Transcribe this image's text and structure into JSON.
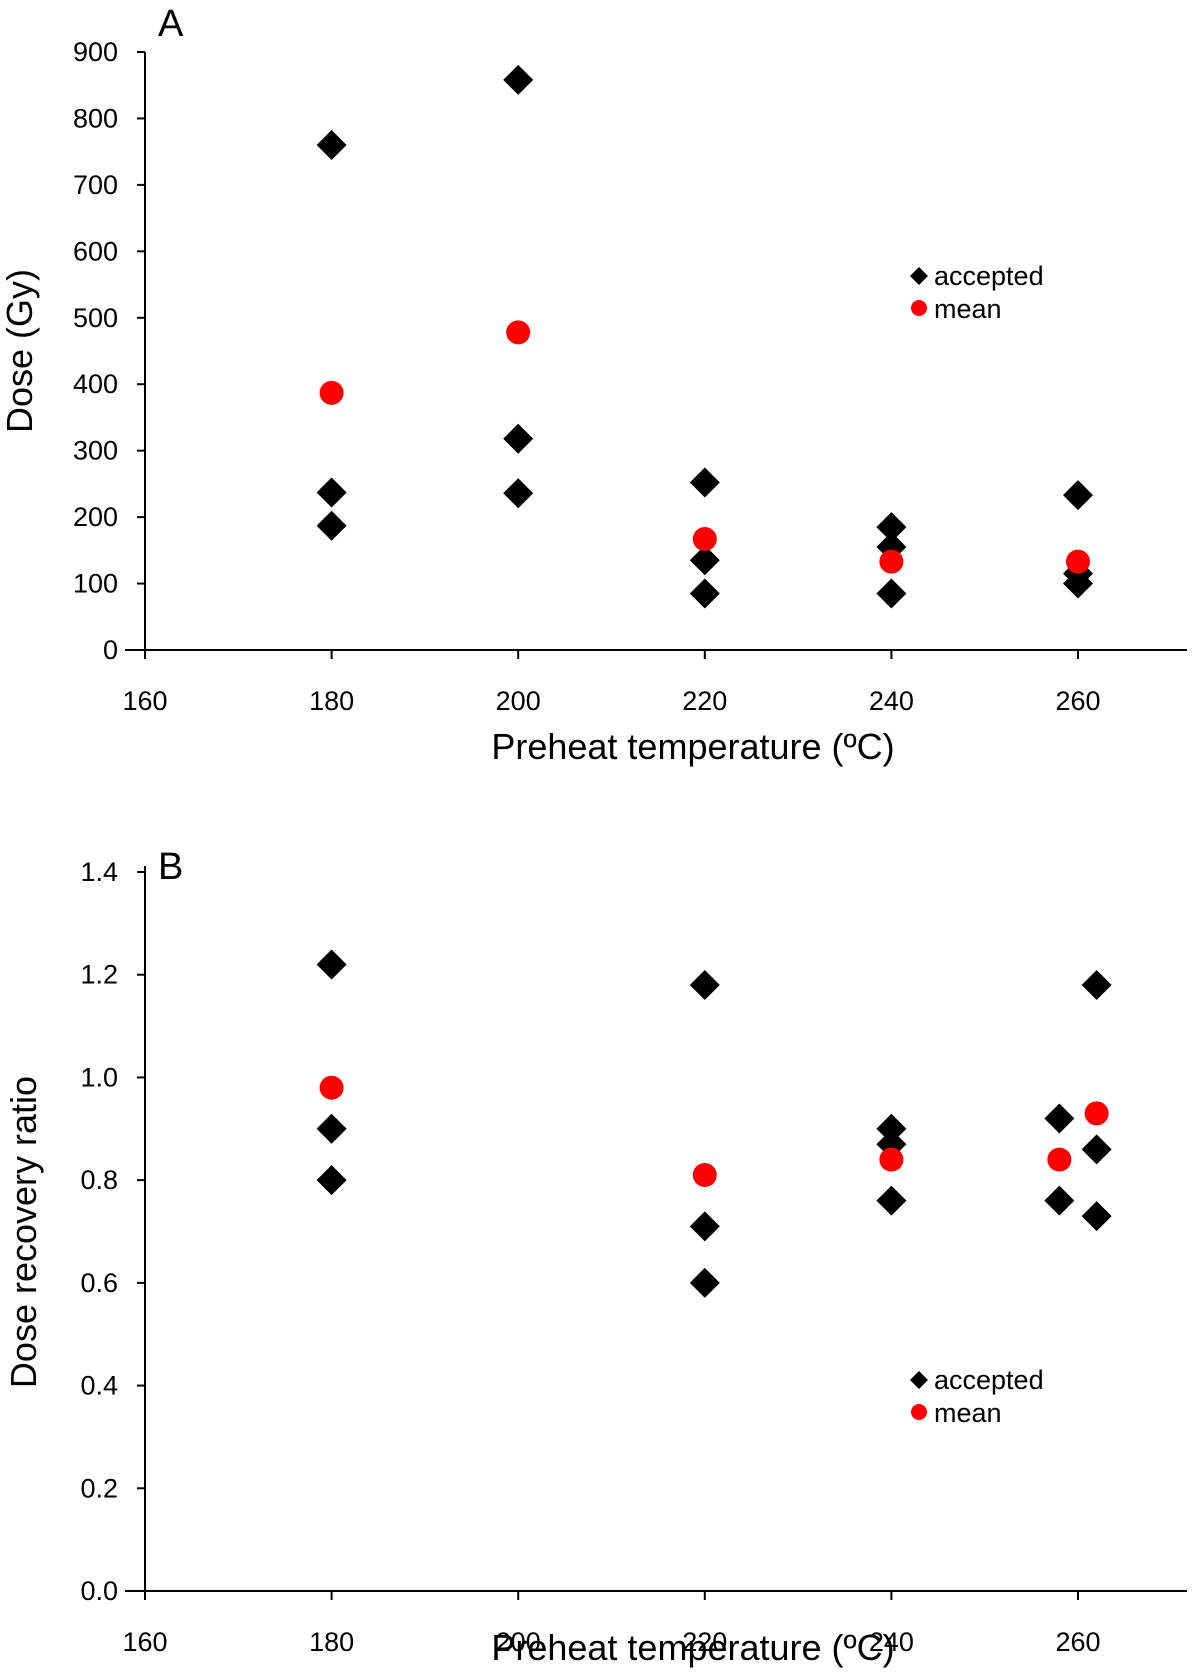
{
  "chart_data": [
    {
      "panel": "A",
      "type": "scatter",
      "xlabel": "Preheat temperature (ºC)",
      "ylabel": "Dose (Gy)",
      "xlim": [
        160,
        272
      ],
      "ylim": [
        0,
        900
      ],
      "xticks": [
        "160",
        "180",
        "200",
        "220",
        "240",
        "260"
      ],
      "yticks": [
        "0",
        "100",
        "200",
        "300",
        "400",
        "500",
        "600",
        "700",
        "800",
        "900"
      ],
      "legend": {
        "position": "upper-right",
        "entries": [
          "accepted",
          "mean"
        ]
      },
      "series": [
        {
          "name": "accepted",
          "marker": "diamond",
          "color": "#000000",
          "points": [
            {
              "x": 180,
              "y": 760
            },
            {
              "x": 180,
              "y": 237
            },
            {
              "x": 180,
              "y": 187
            },
            {
              "x": 200,
              "y": 858
            },
            {
              "x": 200,
              "y": 318
            },
            {
              "x": 200,
              "y": 236
            },
            {
              "x": 220,
              "y": 252
            },
            {
              "x": 220,
              "y": 135
            },
            {
              "x": 220,
              "y": 85
            },
            {
              "x": 240,
              "y": 185
            },
            {
              "x": 240,
              "y": 155
            },
            {
              "x": 240,
              "y": 85
            },
            {
              "x": 260,
              "y": 233
            },
            {
              "x": 260,
              "y": 115
            },
            {
              "x": 260,
              "y": 100
            }
          ]
        },
        {
          "name": "mean",
          "marker": "circle",
          "color": "#ff0000",
          "points": [
            {
              "x": 180,
              "y": 387
            },
            {
              "x": 200,
              "y": 478
            },
            {
              "x": 220,
              "y": 167
            },
            {
              "x": 240,
              "y": 133
            },
            {
              "x": 260,
              "y": 133
            }
          ]
        }
      ]
    },
    {
      "panel": "B",
      "type": "scatter",
      "xlabel": "Preheat temperature (ºC)",
      "ylabel": "Dose recovery ratio",
      "xlim": [
        160,
        272
      ],
      "ylim": [
        0,
        1.4
      ],
      "xticks": [
        "160",
        "180",
        "200",
        "220",
        "240",
        "260"
      ],
      "yticks": [
        "0.0",
        "0.2",
        "0.4",
        "0.6",
        "0.8",
        "1.0",
        "1.2",
        "1.4"
      ],
      "legend": {
        "position": "lower-right",
        "entries": [
          "accepted",
          "mean"
        ]
      },
      "series": [
        {
          "name": "accepted",
          "marker": "diamond",
          "color": "#000000",
          "points": [
            {
              "x": 180,
              "y": 1.22
            },
            {
              "x": 180,
              "y": 0.9
            },
            {
              "x": 180,
              "y": 0.8
            },
            {
              "x": 220,
              "y": 1.18
            },
            {
              "x": 220,
              "y": 0.71
            },
            {
              "x": 220,
              "y": 0.6
            },
            {
              "x": 240,
              "y": 0.9
            },
            {
              "x": 240,
              "y": 0.87
            },
            {
              "x": 240,
              "y": 0.76
            },
            {
              "x": 258,
              "y": 0.92
            },
            {
              "x": 258,
              "y": 0.76
            },
            {
              "x": 262,
              "y": 1.18
            },
            {
              "x": 262,
              "y": 0.86
            },
            {
              "x": 262,
              "y": 0.73
            }
          ]
        },
        {
          "name": "mean",
          "marker": "circle",
          "color": "#ff0000",
          "points": [
            {
              "x": 180,
              "y": 0.98
            },
            {
              "x": 220,
              "y": 0.81
            },
            {
              "x": 240,
              "y": 0.84
            },
            {
              "x": 258,
              "y": 0.84
            },
            {
              "x": 262,
              "y": 0.93
            }
          ]
        }
      ]
    }
  ]
}
